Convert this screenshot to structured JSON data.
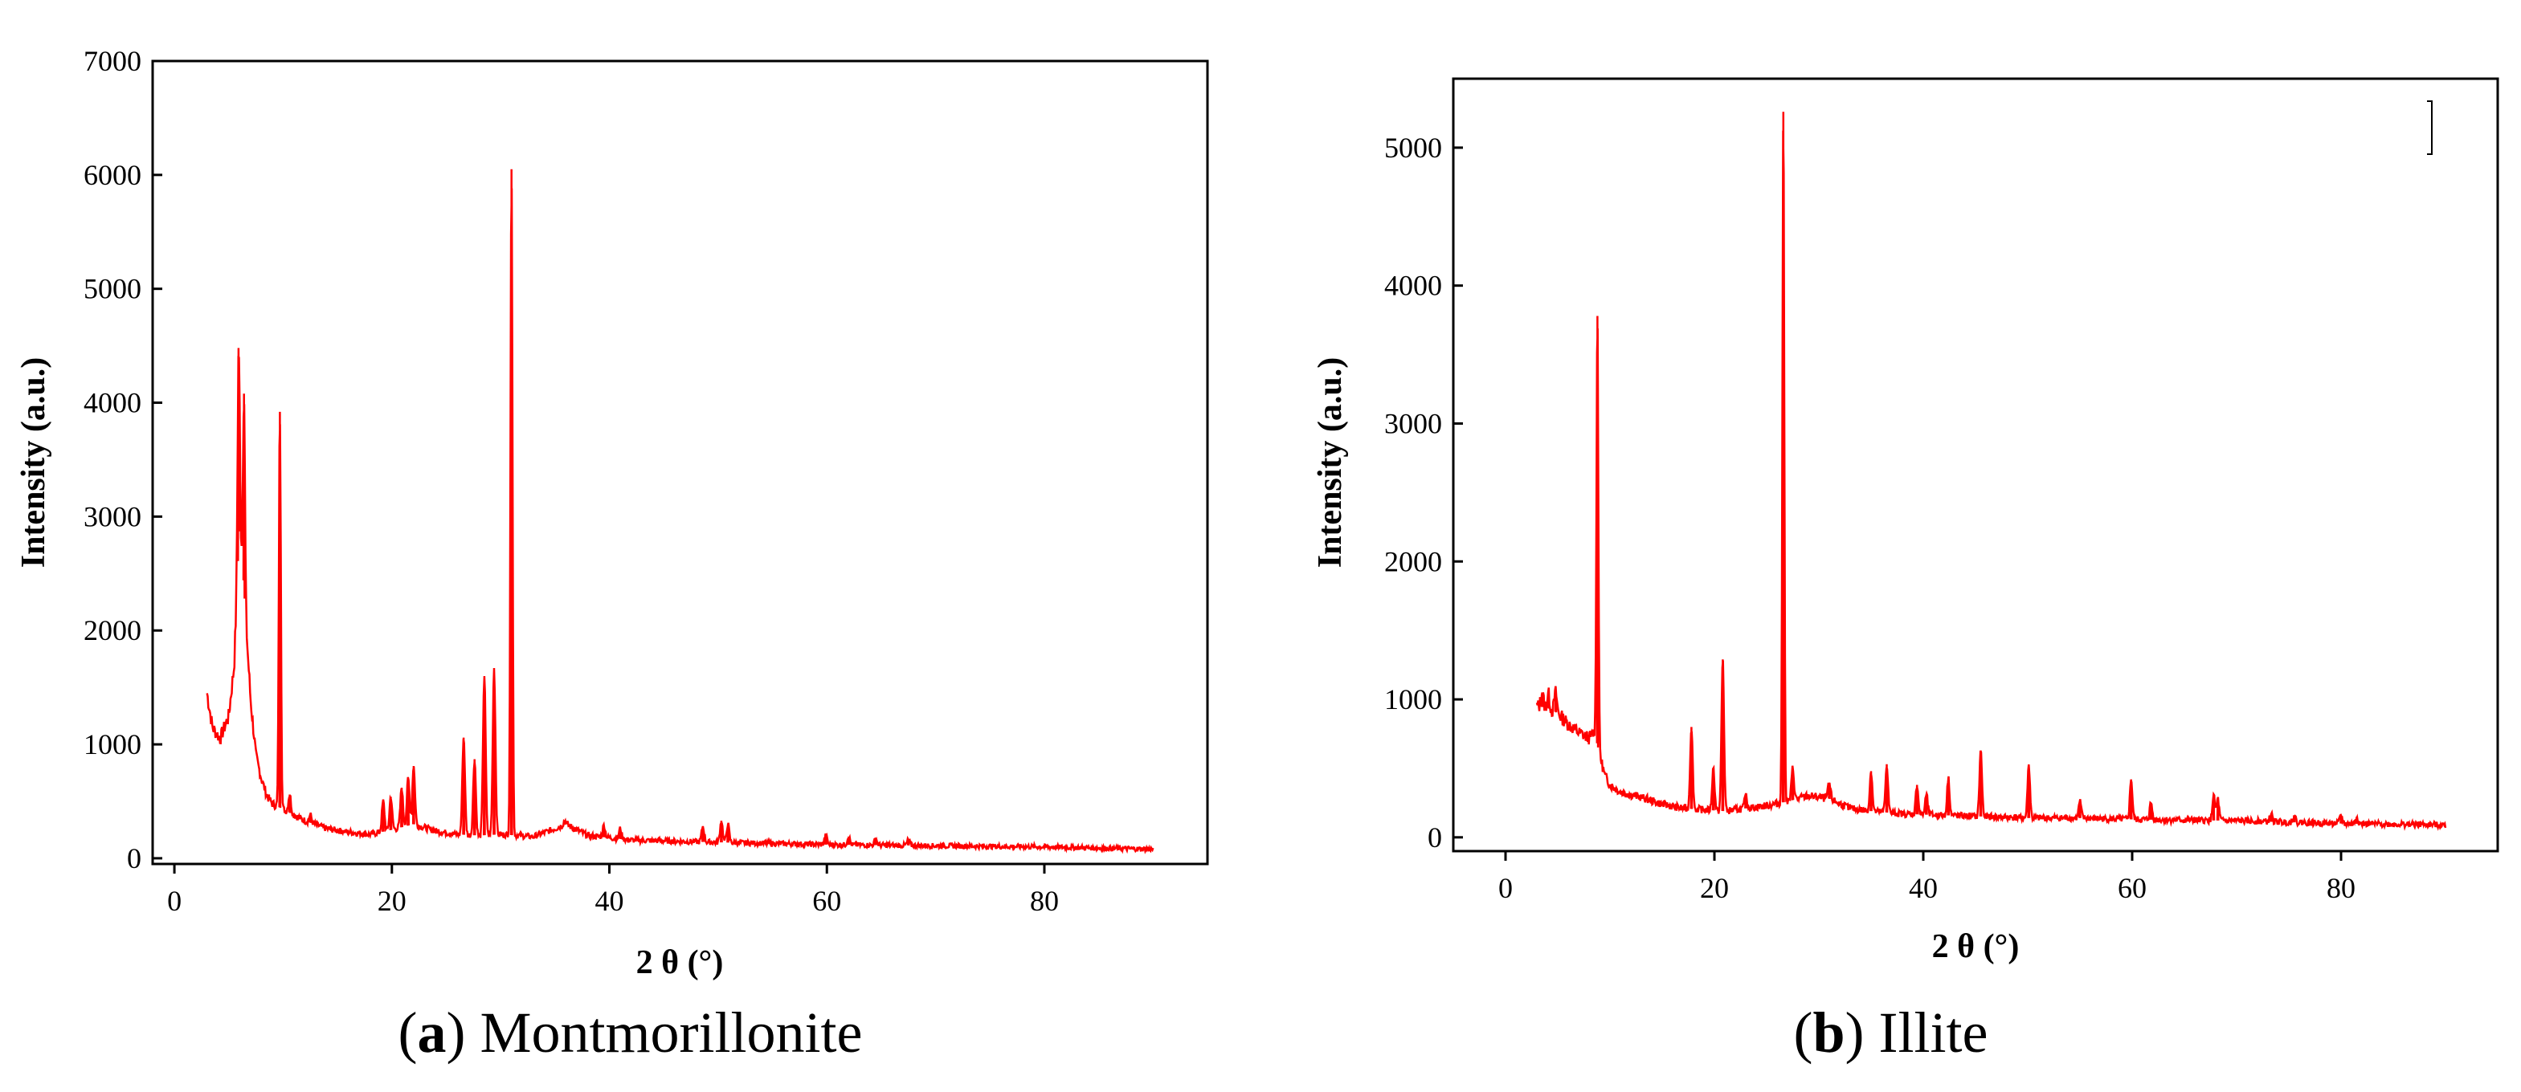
{
  "chart_data": [
    {
      "type": "line",
      "caption_letter": "a",
      "caption_name": "Montmorillonite",
      "xlabel": "2 θ (°)",
      "ylabel": "Intensity (a.u.)",
      "xlim": [
        -2,
        95
      ],
      "ylim": [
        -50,
        7000
      ],
      "xticks": [
        0,
        20,
        40,
        60,
        80
      ],
      "yticks": [
        0,
        1000,
        2000,
        3000,
        4000,
        5000,
        6000,
        7000
      ],
      "line_color": "#ff0000",
      "x_range": [
        3,
        90
      ],
      "baseline": [
        [
          3,
          1450
        ],
        [
          3.5,
          1150
        ],
        [
          4.2,
          1050
        ],
        [
          5,
          1250
        ],
        [
          5.5,
          1700
        ],
        [
          6,
          3000
        ],
        [
          6.5,
          2200
        ],
        [
          7,
          1400
        ],
        [
          7.5,
          900
        ],
        [
          8,
          700
        ],
        [
          8.5,
          550
        ],
        [
          9,
          480
        ],
        [
          10,
          430
        ],
        [
          11,
          380
        ],
        [
          12,
          330
        ],
        [
          14,
          260
        ],
        [
          16,
          230
        ],
        [
          18,
          210
        ],
        [
          20,
          250
        ],
        [
          22,
          300
        ],
        [
          24,
          240
        ],
        [
          26,
          210
        ],
        [
          28,
          200
        ],
        [
          30,
          210
        ],
        [
          33,
          190
        ],
        [
          35,
          260
        ],
        [
          36,
          300
        ],
        [
          38,
          200
        ],
        [
          42,
          160
        ],
        [
          46,
          150
        ],
        [
          50,
          140
        ],
        [
          55,
          130
        ],
        [
          60,
          120
        ],
        [
          65,
          115
        ],
        [
          70,
          110
        ],
        [
          75,
          105
        ],
        [
          80,
          100
        ],
        [
          85,
          90
        ],
        [
          90,
          80
        ]
      ],
      "peaks": [
        {
          "x": 5.9,
          "y": 4480
        },
        {
          "x": 6.4,
          "y": 4080
        },
        {
          "x": 9.7,
          "y": 3920
        },
        {
          "x": 10.6,
          "y": 560
        },
        {
          "x": 12.5,
          "y": 380
        },
        {
          "x": 19.2,
          "y": 500
        },
        {
          "x": 19.9,
          "y": 540
        },
        {
          "x": 20.9,
          "y": 620
        },
        {
          "x": 21.5,
          "y": 700
        },
        {
          "x": 22.0,
          "y": 810
        },
        {
          "x": 26.6,
          "y": 1060
        },
        {
          "x": 27.6,
          "y": 870
        },
        {
          "x": 28.5,
          "y": 1600
        },
        {
          "x": 29.4,
          "y": 1670
        },
        {
          "x": 31.0,
          "y": 6050
        },
        {
          "x": 35.9,
          "y": 330
        },
        {
          "x": 39.5,
          "y": 290
        },
        {
          "x": 41.0,
          "y": 260
        },
        {
          "x": 48.6,
          "y": 280
        },
        {
          "x": 50.3,
          "y": 330
        },
        {
          "x": 50.9,
          "y": 300
        },
        {
          "x": 59.9,
          "y": 200
        },
        {
          "x": 62.0,
          "y": 190
        },
        {
          "x": 64.5,
          "y": 170
        },
        {
          "x": 67.5,
          "y": 160
        }
      ]
    },
    {
      "type": "line",
      "caption_letter": "b",
      "caption_name": "Illite",
      "xlabel": "2 θ (°)",
      "ylabel": "Intensity (a.u.)",
      "xlim": [
        -5,
        95
      ],
      "ylim": [
        -100,
        5500
      ],
      "xticks": [
        0,
        20,
        40,
        60,
        80
      ],
      "yticks": [
        0,
        1000,
        2000,
        3000,
        4000,
        5000
      ],
      "line_color": "#ff0000",
      "x_range": [
        3,
        90
      ],
      "baseline": [
        [
          3,
          950
        ],
        [
          4,
          940
        ],
        [
          5,
          900
        ],
        [
          6,
          820
        ],
        [
          7,
          760
        ],
        [
          8,
          720
        ],
        [
          8.5,
          760
        ],
        [
          9.5,
          450
        ],
        [
          10,
          380
        ],
        [
          11,
          330
        ],
        [
          13,
          290
        ],
        [
          15,
          240
        ],
        [
          17,
          210
        ],
        [
          19,
          200
        ],
        [
          21,
          190
        ],
        [
          23,
          210
        ],
        [
          25,
          230
        ],
        [
          27,
          260
        ],
        [
          29,
          300
        ],
        [
          31,
          280
        ],
        [
          33,
          210
        ],
        [
          35,
          190
        ],
        [
          38,
          170
        ],
        [
          42,
          160
        ],
        [
          46,
          150
        ],
        [
          50,
          140
        ],
        [
          55,
          140
        ],
        [
          60,
          130
        ],
        [
          65,
          125
        ],
        [
          70,
          120
        ],
        [
          75,
          110
        ],
        [
          80,
          100
        ],
        [
          85,
          95
        ],
        [
          90,
          90
        ]
      ],
      "peaks": [
        {
          "x": 3.5,
          "y": 1050
        },
        {
          "x": 4.1,
          "y": 1040
        },
        {
          "x": 4.8,
          "y": 1050
        },
        {
          "x": 8.8,
          "y": 3780
        },
        {
          "x": 17.8,
          "y": 800
        },
        {
          "x": 19.9,
          "y": 500
        },
        {
          "x": 20.8,
          "y": 1290
        },
        {
          "x": 23.0,
          "y": 300
        },
        {
          "x": 26.6,
          "y": 5260
        },
        {
          "x": 27.5,
          "y": 500
        },
        {
          "x": 31.0,
          "y": 390
        },
        {
          "x": 35.0,
          "y": 480
        },
        {
          "x": 36.5,
          "y": 530
        },
        {
          "x": 39.4,
          "y": 380
        },
        {
          "x": 40.3,
          "y": 310
        },
        {
          "x": 42.4,
          "y": 430
        },
        {
          "x": 45.5,
          "y": 630
        },
        {
          "x": 50.1,
          "y": 520
        },
        {
          "x": 55.0,
          "y": 260
        },
        {
          "x": 59.9,
          "y": 420
        },
        {
          "x": 61.8,
          "y": 250
        },
        {
          "x": 67.8,
          "y": 300
        },
        {
          "x": 68.2,
          "y": 280
        },
        {
          "x": 73.3,
          "y": 170
        },
        {
          "x": 75.5,
          "y": 160
        },
        {
          "x": 80.0,
          "y": 160
        },
        {
          "x": 81.5,
          "y": 150
        }
      ]
    }
  ]
}
